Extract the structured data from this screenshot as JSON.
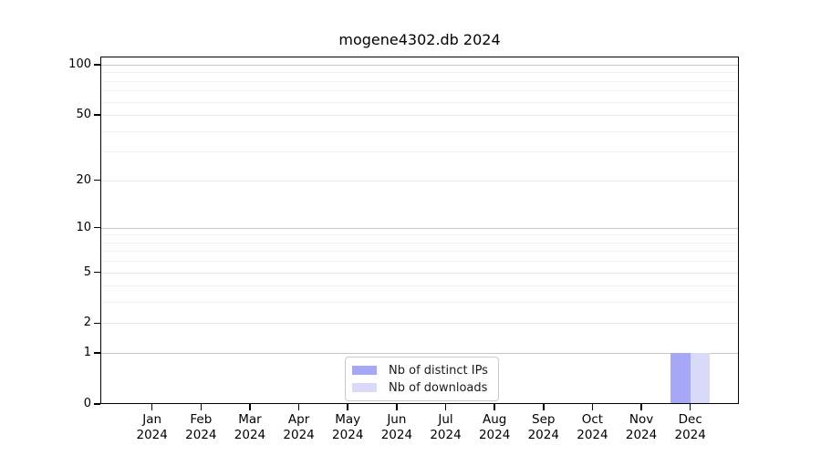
{
  "title": "mogene4302.db 2024",
  "colors": {
    "background": "#ffffff",
    "axis": "#000000",
    "grid_decade": "#c6c6c6",
    "grid_major": "#e7e7e7",
    "grid_minor": "#f2f2f2",
    "legend_border": "#c9c9c9"
  },
  "y_axis": {
    "tick_labels": [
      100,
      50,
      20,
      10,
      5,
      2,
      1,
      0
    ],
    "decade_gridlines": [
      1,
      10,
      100
    ],
    "major_gridlines": [
      2,
      5,
      20,
      50
    ],
    "minor_gridlines": [
      3,
      4,
      6,
      7,
      8,
      9,
      30,
      40,
      60,
      70,
      80,
      90
    ]
  },
  "x_axis": {
    "months": [
      "Jan",
      "Feb",
      "Mar",
      "Apr",
      "May",
      "Jun",
      "Jul",
      "Aug",
      "Sep",
      "Oct",
      "Nov",
      "Dec"
    ],
    "year": "2024"
  },
  "legend": {
    "items": [
      {
        "label": "Nb of distinct IPs"
      },
      {
        "label": "Nb of downloads"
      }
    ]
  },
  "chart_data": {
    "type": "bar",
    "title": "mogene4302.db 2024",
    "categories": [
      "Jan 2024",
      "Feb 2024",
      "Mar 2024",
      "Apr 2024",
      "May 2024",
      "Jun 2024",
      "Jul 2024",
      "Aug 2024",
      "Sep 2024",
      "Oct 2024",
      "Nov 2024",
      "Dec 2024"
    ],
    "series": [
      {
        "key": "distinct-ips",
        "name": "Nb of distinct IPs",
        "color": "#a7a7f7",
        "values": [
          0,
          0,
          0,
          0,
          0,
          0,
          0,
          0,
          0,
          0,
          0,
          1
        ]
      },
      {
        "key": "downloads",
        "name": "Nb of downloads",
        "color": "#d9d9f8",
        "values": [
          0,
          0,
          0,
          0,
          0,
          0,
          0,
          0,
          0,
          0,
          0,
          1
        ]
      }
    ],
    "xlabel": "",
    "ylabel": "",
    "ylim": [
      0,
      100
    ],
    "yscale": "log1p",
    "yticks": [
      0,
      1,
      2,
      5,
      10,
      20,
      50,
      100
    ],
    "grid": "horizontal",
    "legend_position": "inside-bottom-center"
  }
}
